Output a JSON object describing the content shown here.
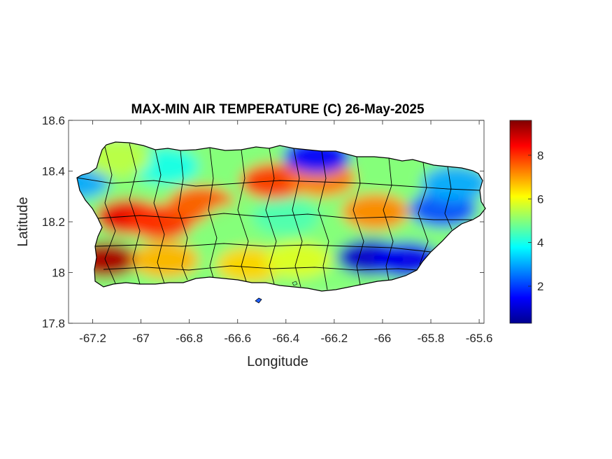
{
  "chart_data": {
    "type": "heatmap",
    "title": "MAX-MIN AIR TEMPERATURE (C) 26-May-2025",
    "xlabel": "Longitude",
    "ylabel": "Latitude",
    "xlim": [
      -67.3,
      -65.58
    ],
    "ylim": [
      17.8,
      18.6
    ],
    "x_ticks": [
      {
        "value": -67.2,
        "label": "-67.2"
      },
      {
        "value": -67.0,
        "label": "-67"
      },
      {
        "value": -66.8,
        "label": "-66.8"
      },
      {
        "value": -66.6,
        "label": "-66.6"
      },
      {
        "value": -66.4,
        "label": "-66.4"
      },
      {
        "value": -66.2,
        "label": "-66.2"
      },
      {
        "value": -66.0,
        "label": "-66"
      },
      {
        "value": -65.8,
        "label": "-65.8"
      },
      {
        "value": -65.6,
        "label": "-65.6"
      }
    ],
    "y_ticks": [
      {
        "value": 17.8,
        "label": "17.8"
      },
      {
        "value": 18.0,
        "label": "18"
      },
      {
        "value": 18.2,
        "label": "18.2"
      },
      {
        "value": 18.4,
        "label": "18.4"
      },
      {
        "value": 18.6,
        "label": "18.6"
      }
    ],
    "colorbar": {
      "colormap": "jet",
      "range": [
        0.3,
        9.6
      ],
      "ticks": [
        {
          "value": 2,
          "label": "2"
        },
        {
          "value": 4,
          "label": "4"
        },
        {
          "value": 6,
          "label": "6"
        },
        {
          "value": 8,
          "label": "8"
        }
      ]
    },
    "field_samples": [
      {
        "lon": -67.15,
        "lat": 18.05,
        "value": 9.2
      },
      {
        "lon": -67.05,
        "lat": 18.22,
        "value": 8.6
      },
      {
        "lon": -66.92,
        "lat": 18.2,
        "value": 8.0
      },
      {
        "lon": -66.75,
        "lat": 18.27,
        "value": 7.6
      },
      {
        "lon": -66.45,
        "lat": 18.36,
        "value": 7.9
      },
      {
        "lon": -66.25,
        "lat": 18.37,
        "value": 7.3
      },
      {
        "lon": -66.03,
        "lat": 18.24,
        "value": 7.2
      },
      {
        "lon": -66.9,
        "lat": 18.42,
        "value": 4.0
      },
      {
        "lon": -67.27,
        "lat": 18.36,
        "value": 3.0
      },
      {
        "lon": -66.27,
        "lat": 18.46,
        "value": 1.5
      },
      {
        "lon": -66.05,
        "lat": 18.06,
        "value": 1.0
      },
      {
        "lon": -65.9,
        "lat": 18.05,
        "value": 1.3
      },
      {
        "lon": -65.75,
        "lat": 18.25,
        "value": 2.2
      },
      {
        "lon": -66.55,
        "lat": 18.03,
        "value": 6.5
      },
      {
        "lon": -66.35,
        "lat": 18.05,
        "value": 5.8
      },
      {
        "lon": -67.1,
        "lat": 18.45,
        "value": 5.5
      },
      {
        "lon": -66.6,
        "lat": 18.2,
        "value": 5.0
      },
      {
        "lon": -66.4,
        "lat": 18.22,
        "value": 4.5
      },
      {
        "lon": -66.9,
        "lat": 18.05,
        "value": 6.8
      },
      {
        "lon": -65.7,
        "lat": 18.35,
        "value": 3.0
      }
    ]
  }
}
